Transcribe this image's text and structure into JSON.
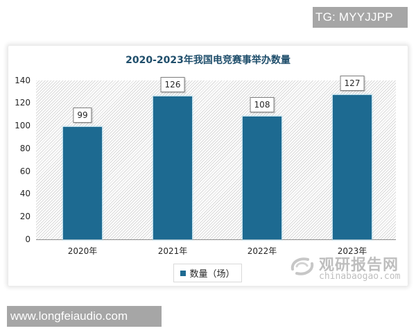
{
  "overlays": {
    "tg_badge": "TG: MYYJJPP",
    "site_badge": "www.longfeiaudio.com"
  },
  "watermark": {
    "cn": "观研报告网",
    "en": "chinabaogao.com",
    "icon": "chinabaogao-logo-icon"
  },
  "colors": {
    "bar": "#1d6a91",
    "title": "#1f4e6b",
    "badge_bg": "#a6a6a6"
  },
  "chart_data": {
    "type": "bar",
    "title": "2020-2023年我国电竞赛事举办数量",
    "categories": [
      "2020年",
      "2021年",
      "2022年",
      "2023年"
    ],
    "series": [
      {
        "name": "数量（场）",
        "values": [
          99,
          126,
          108,
          127
        ]
      }
    ],
    "values": [
      99,
      126,
      108,
      127
    ],
    "data_labels": [
      "99",
      "126",
      "108",
      "127"
    ],
    "xlabel": "",
    "ylabel": "",
    "ylim": [
      0,
      140
    ],
    "yticks": [
      "0",
      "20",
      "40",
      "60",
      "80",
      "100",
      "120",
      "140"
    ],
    "grid": false,
    "background_pattern": "diagonal-hatch",
    "legend": {
      "position": "bottom",
      "entries": [
        "数量（场）"
      ]
    }
  }
}
